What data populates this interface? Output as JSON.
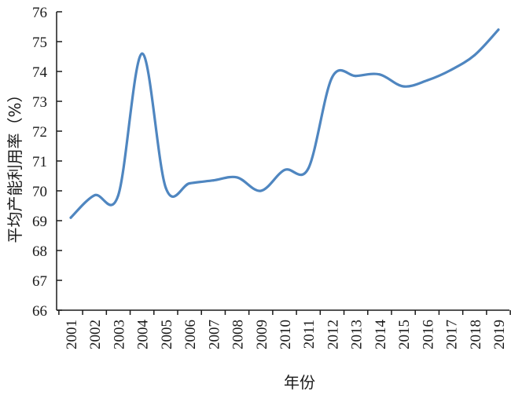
{
  "chart_data": {
    "type": "line",
    "xlabel": "年份",
    "ylabel": "平均产能利用率（%）",
    "categories": [
      "2001",
      "2002",
      "2003",
      "2004",
      "2005",
      "2006",
      "2007",
      "2008",
      "2009",
      "2010",
      "2011",
      "2012",
      "2013",
      "2014",
      "2015",
      "2016",
      "2017",
      "2018",
      "2019"
    ],
    "series": [
      {
        "values": [
          69.1,
          69.85,
          69.85,
          74.6,
          70.1,
          70.25,
          70.35,
          70.45,
          70.0,
          70.7,
          70.75,
          73.8,
          73.85,
          73.9,
          73.5,
          73.7,
          74.05,
          74.55,
          75.4
        ],
        "color": "#4f86c0"
      }
    ],
    "ylim": [
      66,
      76
    ],
    "yticks": [
      66,
      67,
      68,
      69,
      70,
      71,
      72,
      73,
      74,
      75,
      76
    ],
    "grid": false,
    "legend": "none"
  }
}
